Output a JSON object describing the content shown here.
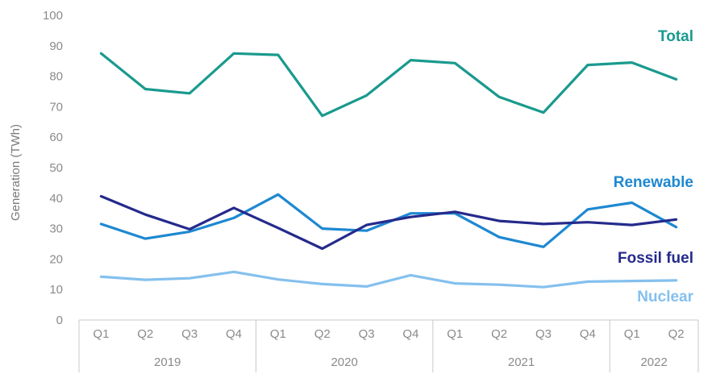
{
  "chart_data": {
    "type": "line",
    "title": "",
    "ylabel": "Generation (TWh)",
    "xlabel": "",
    "ylim": [
      0,
      100
    ],
    "yticks": [
      "0",
      "10",
      "20",
      "30",
      "40",
      "50",
      "60",
      "70",
      "80",
      "90",
      "100"
    ],
    "grid": false,
    "categories": [
      "Q1",
      "Q2",
      "Q3",
      "Q4",
      "Q1",
      "Q2",
      "Q3",
      "Q4",
      "Q1",
      "Q2",
      "Q3",
      "Q4",
      "Q1",
      "Q2"
    ],
    "groups": [
      {
        "label": "2019",
        "count": 4
      },
      {
        "label": "2020",
        "count": 4
      },
      {
        "label": "2021",
        "count": 4
      },
      {
        "label": "2022",
        "count": 2
      }
    ],
    "series": [
      {
        "name": "Total",
        "color": "#1a9a8e",
        "values": [
          87.5,
          75.8,
          74.4,
          87.5,
          87.0,
          67.0,
          73.7,
          85.3,
          84.3,
          73.2,
          68.1,
          83.7,
          84.5,
          79.0
        ]
      },
      {
        "name": "Renewable",
        "color": "#1e88d1",
        "values": [
          31.5,
          26.7,
          29.0,
          33.5,
          41.2,
          30.0,
          29.3,
          35.0,
          35.0,
          27.2,
          24.0,
          36.3,
          38.5,
          30.5
        ]
      },
      {
        "name": "Fossil fuel",
        "color": "#252a8c",
        "values": [
          40.6,
          34.6,
          29.8,
          36.8,
          30.2,
          23.4,
          31.2,
          33.8,
          35.5,
          32.5,
          31.5,
          32.1,
          31.2,
          33.0
        ]
      },
      {
        "name": "Nuclear",
        "color": "#84c0ee",
        "values": [
          14.2,
          13.2,
          13.7,
          15.8,
          13.3,
          11.8,
          11.0,
          14.7,
          12.0,
          11.6,
          10.8,
          12.6,
          12.8,
          13.0
        ]
      }
    ]
  }
}
